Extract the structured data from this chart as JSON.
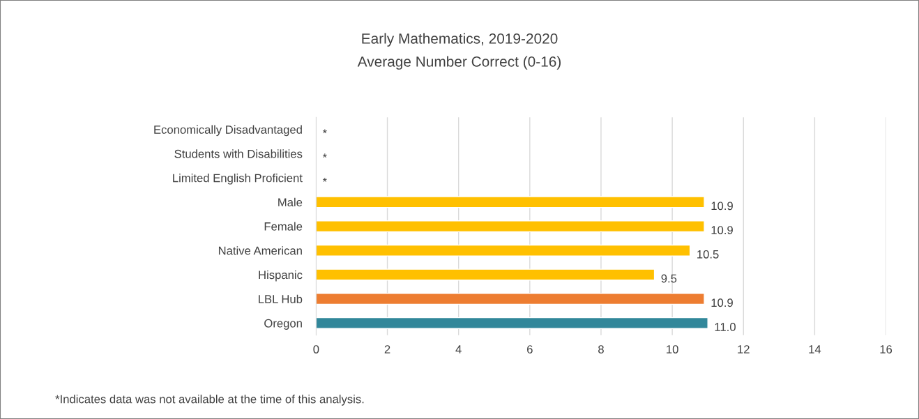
{
  "chart_data": {
    "type": "bar",
    "orientation": "horizontal",
    "title": "Early Mathematics, 2019-2020",
    "subtitle": "Average Number Correct (0-16)",
    "categories": [
      "Economically Disadvantaged",
      "Students with Disabilities",
      "Limited English Proficient",
      "Male",
      "Female",
      "Native American",
      "Hispanic",
      "LBL Hub",
      "Oregon"
    ],
    "values": [
      null,
      null,
      null,
      10.9,
      10.9,
      10.5,
      9.5,
      10.9,
      11.0
    ],
    "value_labels": [
      "*",
      "*",
      "*",
      "10.9",
      "10.9",
      "10.5",
      "9.5",
      "10.9",
      "11.0"
    ],
    "colors": [
      "#ffc000",
      "#ffc000",
      "#ffc000",
      "#ffc000",
      "#ffc000",
      "#ffc000",
      "#ffc000",
      "#ed7d31",
      "#31879a"
    ],
    "xlim": [
      0,
      16
    ],
    "xticks": [
      0,
      2,
      4,
      6,
      8,
      10,
      12,
      14,
      16
    ],
    "grid": "x",
    "legend": false,
    "annotations": [
      "*Indicates data was not available at the time of this analysis."
    ]
  }
}
